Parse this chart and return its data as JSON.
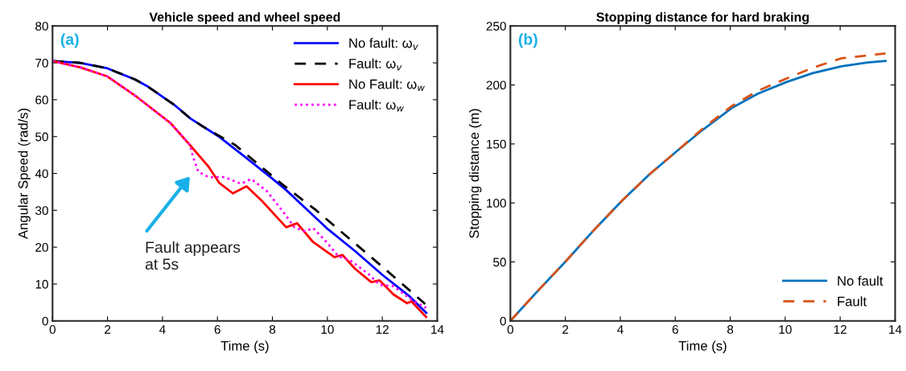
{
  "chart_data": [
    {
      "type": "line",
      "title": "Vehicle speed and wheel speed",
      "xlabel": "Time (s)",
      "ylabel": "Angular Speed (rad/s)",
      "xlim": [
        0,
        14
      ],
      "xticks": [
        0,
        2,
        4,
        6,
        8,
        10,
        12,
        14
      ],
      "ylim": [
        0,
        80
      ],
      "yticks": [
        0,
        10,
        20,
        30,
        40,
        50,
        60,
        70,
        80
      ],
      "grid": false,
      "legend": "top right",
      "marker": "none",
      "annotations": [
        "(a)",
        "Fault appears\nat 5s"
      ],
      "series": [
        {
          "name": "No fault: ω$_{v}$",
          "color": "#0000ff",
          "line_style": "solid",
          "x": [
            0,
            1,
            2,
            3,
            3.44,
            4.43,
            5,
            6.07,
            7,
            7.93,
            8.5,
            9.97,
            11,
            12,
            12.97,
            13.6
          ],
          "values": [
            70.5,
            70,
            68.5,
            65.5,
            63.7,
            58.6,
            55,
            49.9,
            44.5,
            39,
            35.5,
            25.2,
            19,
            12.5,
            6.8,
            2.2
          ]
        },
        {
          "name": "Fault: ω$_{v}$",
          "color": "#000000",
          "line_style": "dashed",
          "x": [
            0,
            1,
            2,
            3,
            3.44,
            4.43,
            5,
            5.5,
            6.65,
            8.4,
            9.56,
            12,
            13.56
          ],
          "values": [
            70.5,
            70,
            68.5,
            65.5,
            63.7,
            58.6,
            55,
            52.6,
            47.7,
            36.8,
            30.2,
            14.7,
            4.6
          ]
        },
        {
          "name": "No Fault: ω$_{w}$",
          "color": "#ff0000",
          "line_style": "solid",
          "x": [
            0,
            1,
            2,
            3.06,
            4.3,
            5,
            5.68,
            6.07,
            6.56,
            7.06,
            7.64,
            8.5,
            8.9,
            9.48,
            10.26,
            10.55,
            11,
            11.6,
            11.9,
            12.4,
            12.9,
            13.06,
            13.59
          ],
          "values": [
            70.5,
            68.8,
            66.3,
            60.8,
            53.6,
            47.7,
            41.8,
            37.4,
            34.6,
            36.5,
            32.4,
            25.4,
            26.5,
            21.4,
            17.3,
            17.9,
            14.2,
            10.5,
            11,
            7.2,
            4.8,
            5.3,
            1.1
          ]
        },
        {
          "name": "Fault: ω$_{w}$",
          "color": "#ff00ff",
          "line_style": "dotted",
          "x": [
            0,
            1,
            2,
            3.06,
            4.3,
            5,
            5.1,
            5.3,
            5.68,
            6.27,
            6.85,
            7.23,
            7.8,
            8.4,
            8.8,
            9.2,
            9.48,
            9.97,
            10.4,
            10.8,
            11.5,
            11.9,
            12.4,
            13,
            13.59
          ],
          "values": [
            70.5,
            68.8,
            66.3,
            60.8,
            53.6,
            47.7,
            44.8,
            40.5,
            39,
            39,
            37.2,
            38.5,
            35.2,
            29.5,
            25.4,
            24.3,
            25.2,
            21.4,
            17.5,
            16.6,
            12.7,
            9.8,
            9.4,
            6.1,
            3.5
          ]
        }
      ]
    },
    {
      "type": "line",
      "title": "Stopping distance for hard braking",
      "xlabel": "Time (s)",
      "ylabel": "Stopping distance (m)",
      "xlim": [
        0,
        14
      ],
      "xticks": [
        0,
        2,
        4,
        6,
        8,
        10,
        12,
        14
      ],
      "ylim": [
        0,
        250
      ],
      "yticks": [
        0,
        50,
        100,
        150,
        200,
        250
      ],
      "grid": false,
      "legend": "bottom right",
      "marker": "none",
      "annotations": [
        "(b)"
      ],
      "series": [
        {
          "name": "No fault",
          "color": "#0072bd",
          "line_style": "solid",
          "x": [
            0,
            1,
            2,
            3,
            4.05,
            5.05,
            6.05,
            7,
            8.05,
            9,
            10.05,
            11,
            12.05,
            13,
            13.65
          ],
          "values": [
            0,
            25.5,
            50.2,
            76,
            101.6,
            124,
            143.8,
            162,
            180.4,
            192.5,
            202.5,
            210,
            215.8,
            219,
            220.3
          ]
        },
        {
          "name": "Fault",
          "color": "#d95319",
          "line_style": "dashed",
          "x": [
            0,
            1,
            2,
            3,
            4.05,
            5.05,
            6.05,
            7,
            8.05,
            9,
            10.05,
            11,
            12.05,
            13,
            13.65
          ],
          "values": [
            0,
            25.5,
            50.2,
            76,
            101.6,
            124,
            143.8,
            163,
            182,
            195,
            205.5,
            214.5,
            222.6,
            225,
            226.7
          ]
        }
      ]
    }
  ]
}
